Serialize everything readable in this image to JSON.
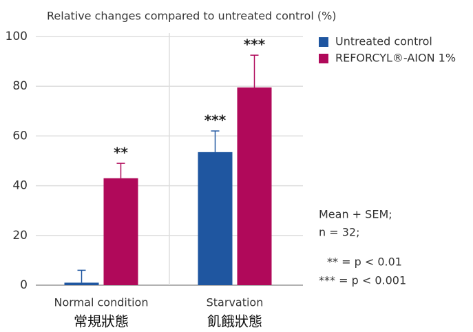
{
  "chart_data": {
    "type": "bar",
    "y_axis_label": "Relative changes compared to untreated control (%)",
    "categories": [
      "Normal condition",
      "Starvation"
    ],
    "category_subtitles": [
      "常規狀態",
      "飢餓狀態"
    ],
    "series": [
      {
        "name": "Untreated control",
        "color": "#1f56a0",
        "values": [
          1,
          53.5
        ],
        "errors": [
          5,
          8.5
        ],
        "value_annotations": [
          null,
          "***"
        ]
      },
      {
        "name": "REFORCYL®-AION 1%",
        "color": "#b0095a",
        "values": [
          43,
          79.5
        ],
        "errors": [
          6,
          13
        ],
        "value_annotations": [
          "**",
          "***"
        ]
      }
    ],
    "ylim": [
      0,
      100
    ],
    "yticks": [
      0,
      20,
      40,
      60,
      80,
      100
    ],
    "grid": true,
    "legend": "upper right",
    "notes": [
      "Mean + SEM;",
      "n = 32;",
      "** = p < 0.01",
      "*** = p < 0.001"
    ]
  }
}
